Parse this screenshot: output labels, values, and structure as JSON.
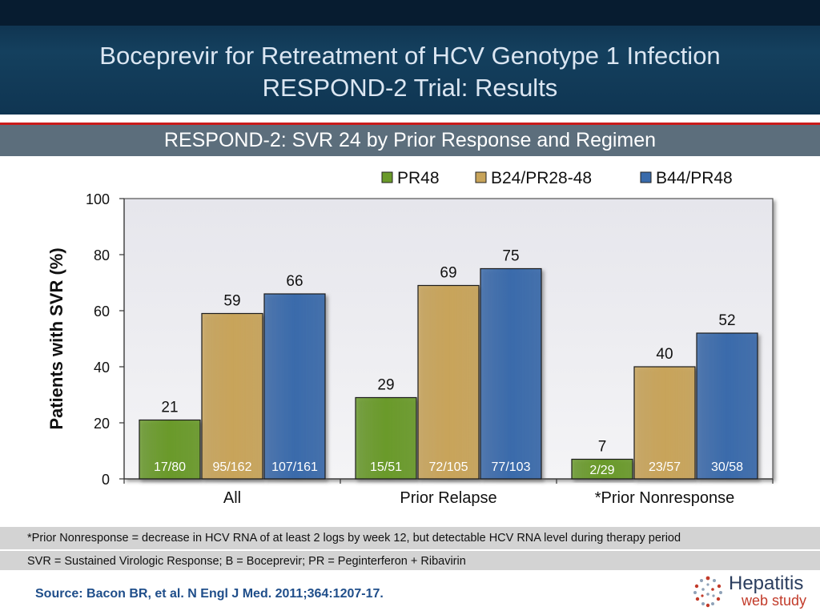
{
  "header": {
    "title_line1": "Boceprevir for Retreatment of HCV Genotype 1 Infection",
    "title_line2": "RESPOND-2 Trial: Results"
  },
  "subtitle": "RESPOND-2: SVR 24 by Prior Response and Regimen",
  "chart_data": {
    "type": "bar",
    "categories": [
      "All",
      "Prior Relapse",
      "*Prior Nonresponse"
    ],
    "series": [
      {
        "name": "PR48",
        "color": "#6a9a2a",
        "values": [
          21,
          29,
          7
        ],
        "fractions": [
          "17/80",
          "15/51",
          "2/29"
        ]
      },
      {
        "name": "B24/PR28-48",
        "color": "#c8a45a",
        "values": [
          59,
          69,
          40
        ],
        "fractions": [
          "95/162",
          "72/105",
          "23/57"
        ]
      },
      {
        "name": "B44/PR48",
        "color": "#3a6bab",
        "values": [
          66,
          75,
          52
        ],
        "fractions": [
          "107/161",
          "77/103",
          "30/58"
        ]
      }
    ],
    "ylabel": "Patients with SVR (%)",
    "xlabel": "",
    "ylim": [
      0,
      100
    ],
    "yticks": [
      0,
      20,
      40,
      60,
      80,
      100
    ],
    "grid": false,
    "legend_position": "top-right"
  },
  "notes": {
    "line1": "*Prior Nonresponse = decrease in HCV RNA of at least 2 logs by week 12,  but detectable HCV RNA level during therapy period",
    "line2": "SVR = Sustained Virologic Response; B = Boceprevir;  PR = Peginterferon + Ribavirin"
  },
  "source": "Source: Bacon BR, et al.  N Engl J Med.  2011;364:1207-17.",
  "logo": {
    "line1": "Hepatitis",
    "line2": "web study"
  }
}
